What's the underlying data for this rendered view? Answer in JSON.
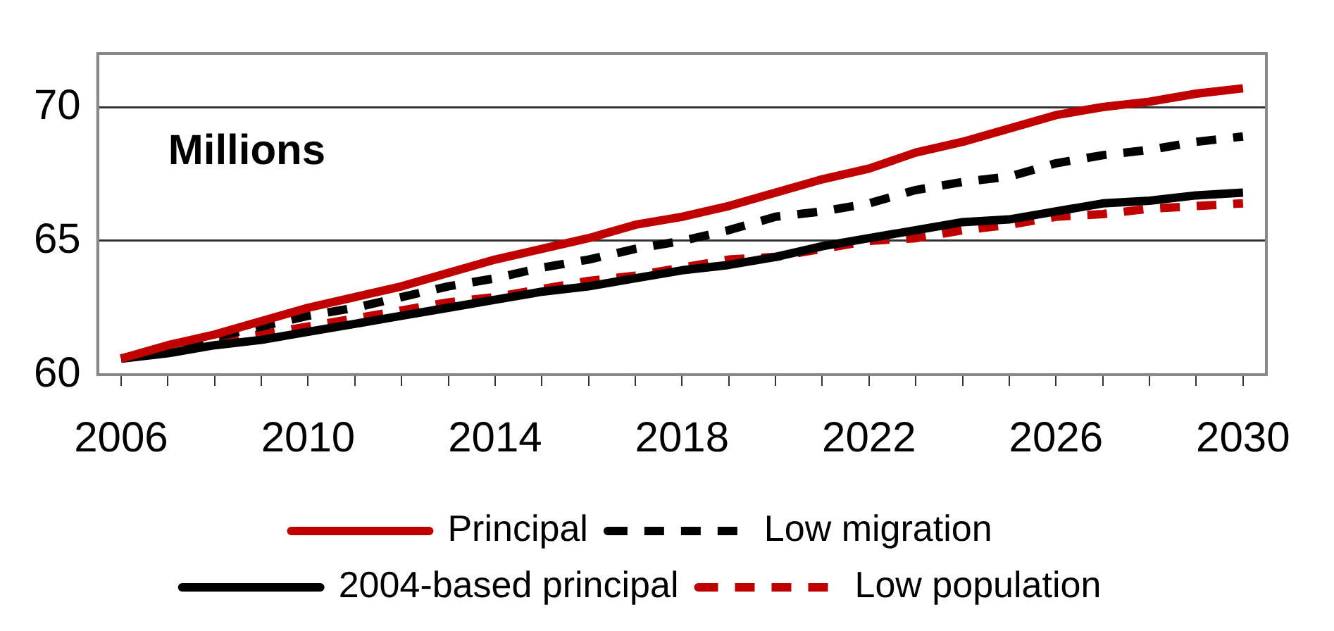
{
  "chart_data": {
    "type": "line",
    "annotations": [
      "Millions"
    ],
    "categories": [
      "2006",
      null,
      null,
      null,
      "2010",
      null,
      null,
      null,
      "2014",
      null,
      null,
      null,
      "2018",
      null,
      null,
      null,
      "2022",
      null,
      null,
      null,
      "2026",
      null,
      null,
      null,
      "2030"
    ],
    "series": [
      {
        "name": "Principal",
        "color": "#c00000",
        "line_style": "solid",
        "values": [
          60.6,
          61.1,
          61.5,
          62.0,
          62.5,
          62.9,
          63.3,
          63.8,
          64.3,
          64.7,
          65.1,
          65.6,
          65.9,
          66.3,
          66.8,
          67.3,
          67.7,
          68.3,
          68.7,
          69.2,
          69.7,
          70.0,
          70.2,
          70.5,
          70.7
        ]
      },
      {
        "name": "Low migration",
        "color": "#000000",
        "line_style": "dashed",
        "values": [
          60.6,
          61.0,
          61.4,
          61.8,
          62.2,
          62.5,
          62.9,
          63.3,
          63.6,
          64.0,
          64.3,
          64.7,
          65.0,
          65.4,
          65.9,
          66.1,
          66.4,
          66.9,
          67.2,
          67.4,
          67.9,
          68.2,
          68.4,
          68.7,
          68.9
        ]
      },
      {
        "name": "2004-based principal",
        "color": "#000000",
        "line_style": "solid",
        "values": [
          60.6,
          60.8,
          61.1,
          61.3,
          61.6,
          61.9,
          62.2,
          62.5,
          62.8,
          63.1,
          63.3,
          63.6,
          63.9,
          64.1,
          64.4,
          64.8,
          65.1,
          65.4,
          65.7,
          65.8,
          66.1,
          66.4,
          66.5,
          66.7,
          66.8
        ]
      },
      {
        "name": "Low population",
        "color": "#c00000",
        "line_style": "dashed",
        "values": [
          60.6,
          61.0,
          61.3,
          61.5,
          61.8,
          62.1,
          62.4,
          62.7,
          62.9,
          63.2,
          63.5,
          63.7,
          64.0,
          64.3,
          64.4,
          64.7,
          65.0,
          65.1,
          65.4,
          65.6,
          65.9,
          66.0,
          66.2,
          66.3,
          66.4
        ]
      }
    ],
    "ylim": [
      60,
      72
    ],
    "yticks": [
      60,
      65,
      70
    ],
    "grid": "y",
    "legend": "bottom",
    "marker": "none"
  }
}
